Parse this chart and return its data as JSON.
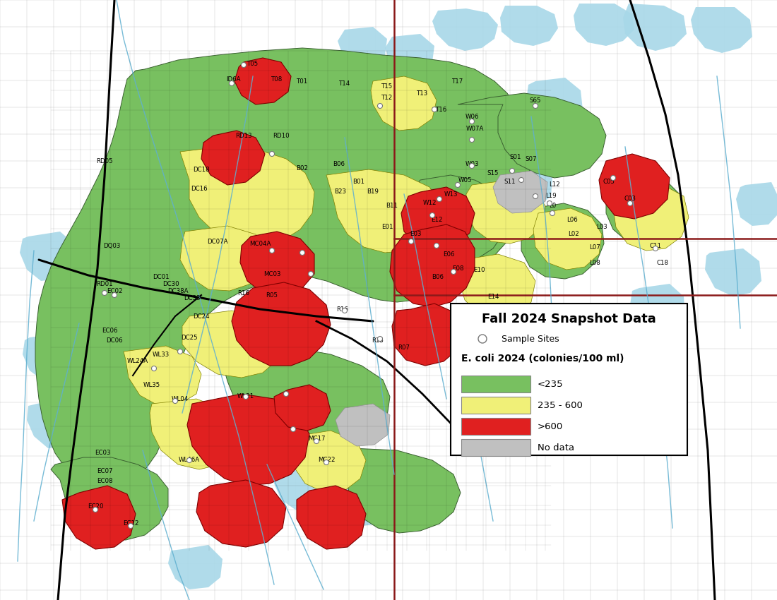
{
  "title": "Fall 2024 Snapshot Data",
  "legend_subtitle": "E. coli 2024 (colonies/100 ml)",
  "legend_items": [
    {
      "label": "<235",
      "color": "#78c060"
    },
    {
      "label": "235 - 600",
      "color": "#f0f078"
    },
    {
      "label": ">600",
      "color": "#e02020"
    },
    {
      "label": "No data",
      "color": "#c0c0c0"
    }
  ],
  "sample_sites_label": "Sample Sites",
  "bg_color": "#ffffff",
  "water_color": "#a8d8e8",
  "grid_color": "#aaaaaa",
  "green_color": "#78c060",
  "yellow_color": "#f0f078",
  "red_color": "#e02020",
  "gray_color": "#c0c0c0",
  "border_dark_red": "#8b1a1a",
  "stream_color": "#60b0d0"
}
